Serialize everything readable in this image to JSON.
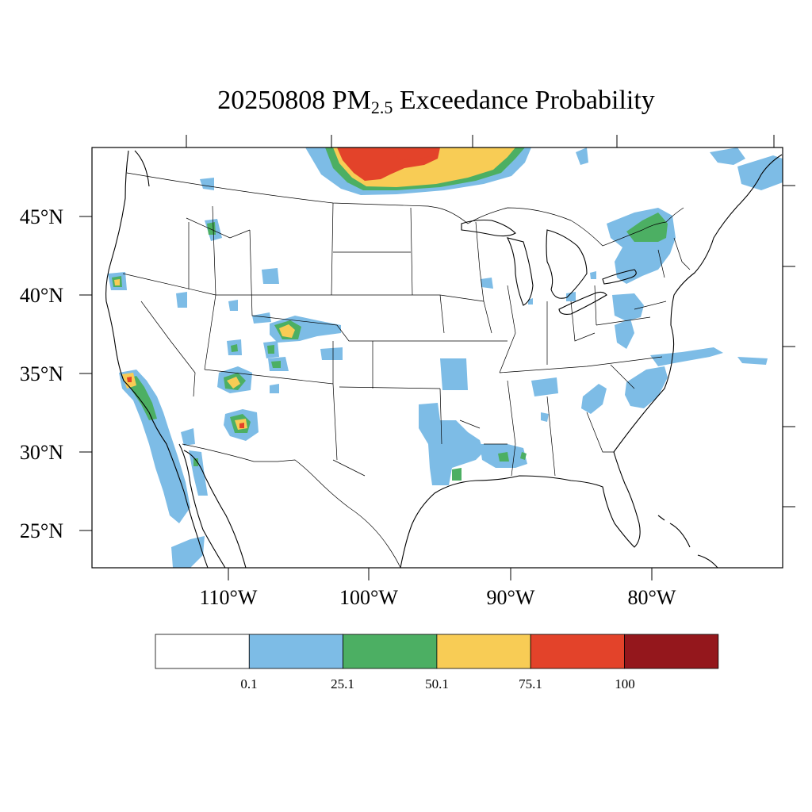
{
  "title": {
    "prefix": "20250808 PM",
    "subscript": "2.5",
    "suffix": " Exceedance Probability"
  },
  "axes": {
    "lat_labels": [
      "45°N",
      "40°N",
      "35°N",
      "30°N",
      "25°N"
    ],
    "lon_labels": [
      "110°W",
      "100°W",
      "90°W",
      "80°W"
    ]
  },
  "colorbar": {
    "labels": [
      "0.1",
      "25.1",
      "50.1",
      "75.1",
      "100"
    ],
    "bins": [
      {
        "color": "#ffffff",
        "from": null,
        "to": 0.1
      },
      {
        "color": "#7dbce6",
        "from": 0.1,
        "to": 25.1
      },
      {
        "color": "#4caf63",
        "from": 25.1,
        "to": 50.1
      },
      {
        "color": "#f8cc55",
        "from": 50.1,
        "to": 75.1
      },
      {
        "color": "#e3432a",
        "from": 75.1,
        "to": 100
      },
      {
        "color": "#94171c",
        "from": 100,
        "to": null
      }
    ]
  },
  "colors": {
    "blue": "#7dbce6",
    "green": "#4caf63",
    "yellow": "#f8cc55",
    "red": "#e3432a",
    "darkred": "#94171c"
  }
}
